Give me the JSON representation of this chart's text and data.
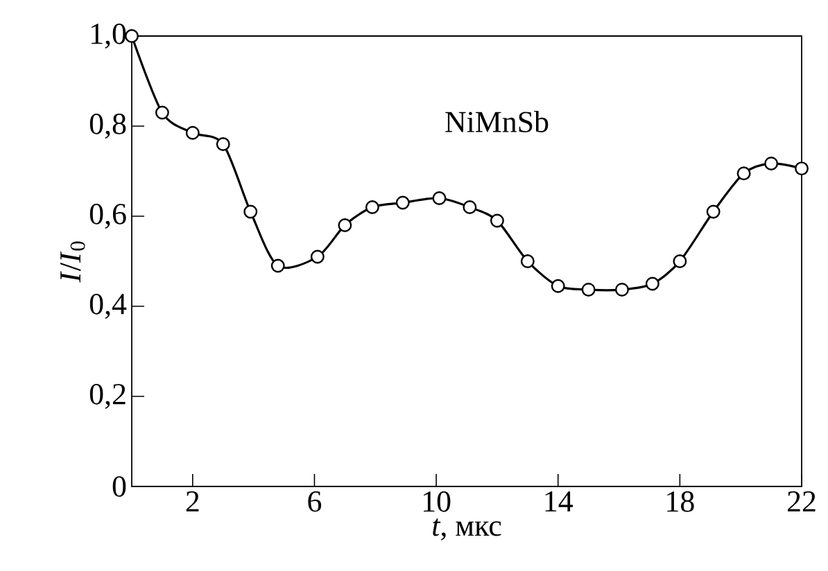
{
  "chart_data": {
    "type": "line",
    "xlabel": "*t*, мкс",
    "ylabel": "*I*/*I*$_{0}$",
    "annotations": [
      "NiMnSb"
    ],
    "x": [
      0,
      1,
      2,
      3,
      3.9,
      4.8,
      6.1,
      7,
      7.9,
      8.9,
      10.1,
      11.1,
      12,
      13,
      14,
      15,
      16.1,
      17.1,
      18,
      19.1,
      20.1,
      21,
      22
    ],
    "series": [
      {
        "color": "#000000",
        "values": [
          1.0,
          0.83,
          0.785,
          0.76,
          0.61,
          0.49,
          0.51,
          0.58,
          0.62,
          0.63,
          0.64,
          0.62,
          0.59,
          0.5,
          0.445,
          0.437,
          0.437,
          0.45,
          0.5,
          0.61,
          0.695,
          0.717,
          0.706
        ]
      }
    ],
    "xlim": [
      0,
      22
    ],
    "ylim": [
      0,
      1
    ],
    "xticks": [
      2,
      6,
      10,
      14,
      18,
      22
    ],
    "yticks": [
      0,
      {
        "value": 0.2,
        "label": "0,2"
      },
      {
        "value": 0.4,
        "label": "0,4"
      },
      {
        "value": 0.6,
        "label": "0,6"
      },
      {
        "value": 0.8,
        "label": "0,8"
      },
      {
        "value": 1.0,
        "label": "1,0"
      }
    ],
    "marker": "circle",
    "line_style": "solid",
    "grid": false,
    "legend": false
  }
}
